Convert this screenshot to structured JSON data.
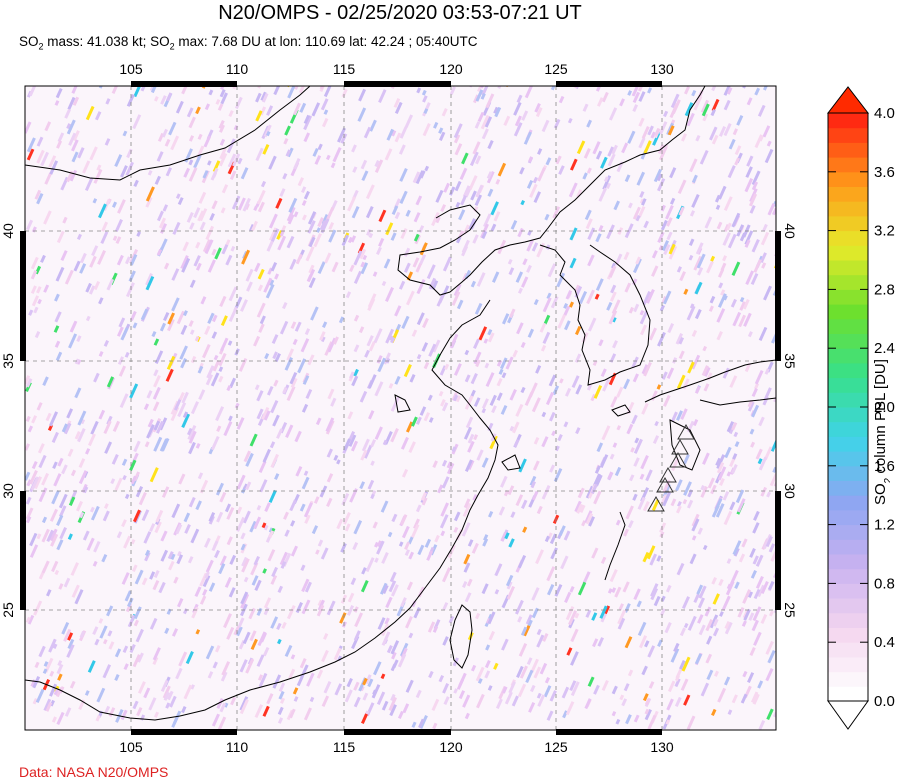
{
  "header": {
    "title": "N20/OMPS - 02/25/2020 03:53-07:21 UT",
    "subtitle_pre": "SO",
    "subtitle_sub1": "2",
    "subtitle_mid": " mass: 41.038 kt; SO",
    "subtitle_sub2": "2",
    "subtitle_post": " max: 7.68 DU at lon: 110.69 lat: 42.24 ; 05:40UTC"
  },
  "map": {
    "lon_ticks": [
      "105",
      "110",
      "115",
      "120",
      "125",
      "130"
    ],
    "lat_ticks": [
      "40",
      "35",
      "30",
      "25"
    ],
    "lon_range": [
      100,
      135
    ],
    "lat_range": [
      20.5,
      44.5
    ],
    "volcano_markers": "triangle-icon"
  },
  "colorbar": {
    "ticks": [
      "4.0",
      "3.6",
      "3.2",
      "2.8",
      "2.4",
      "2.0",
      "1.6",
      "1.2",
      "0.8",
      "0.4",
      "0.0"
    ],
    "label": "SO2 column PBL [DU]",
    "label_pre": "SO",
    "label_sub": "2",
    "label_post": " column PBL [DU]",
    "range": [
      0.0,
      4.0
    ],
    "colors": [
      "#ffffff",
      "#f4d6ef",
      "#c9b2f0",
      "#8fa6f2",
      "#3fd3e8",
      "#38e08a",
      "#6de02e",
      "#e6ea2a",
      "#ff9a1a",
      "#ff2a12"
    ]
  },
  "footer": {
    "credit": "Data: NASA N20/OMPS"
  }
}
